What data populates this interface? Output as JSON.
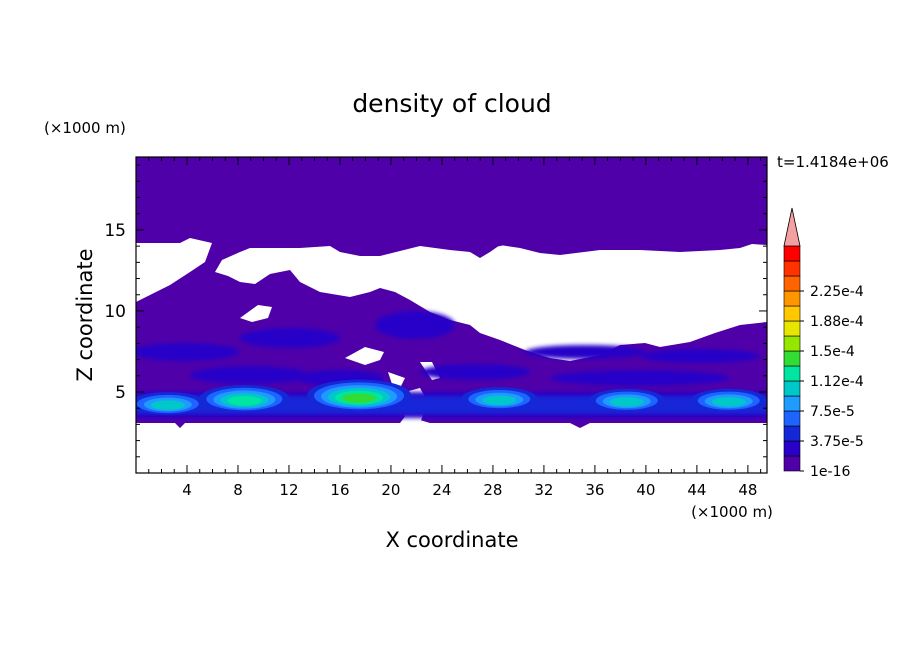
{
  "chart_data": {
    "type": "heatmap",
    "title": "density of cloud",
    "xlabel": "X coordinate",
    "ylabel": "Z coordinate",
    "x_unit": "(×1000 m)",
    "y_unit": "(×1000 m)",
    "time_label": "t=1.4184e+06",
    "xlim": [
      0,
      49.5
    ],
    "ylim": [
      0,
      19.5
    ],
    "x_ticks": [
      4,
      8,
      12,
      16,
      20,
      24,
      28,
      32,
      36,
      40,
      44,
      48
    ],
    "y_ticks": [
      5,
      10,
      15
    ],
    "colorbar": {
      "tick_labels": [
        "1e-16",
        "3.75e-5",
        "7.5e-5",
        "1.12e-4",
        "1.5e-4",
        "1.88e-4",
        "2.25e-4"
      ],
      "colors": [
        "#5000a8",
        "#2800c8",
        "#1428d8",
        "#1e64ff",
        "#1e9bff",
        "#00c8c8",
        "#00e6a0",
        "#32dc32",
        "#96e600",
        "#e6e600",
        "#ffc800",
        "#ff9600",
        "#ff6400",
        "#ff3200",
        "#ff0000",
        "#f4a0a0"
      ]
    },
    "cloud_layer": {
      "base_z": 3.5,
      "top_z_min": 10.0,
      "top_z_max": 14.5,
      "high_cloud_band_z": [
        15.5,
        17.0
      ]
    },
    "cores": [
      {
        "x": 2.5,
        "z": 4.3,
        "level": 5
      },
      {
        "x": 8.5,
        "z": 4.6,
        "level": 6
      },
      {
        "x": 17.5,
        "z": 4.8,
        "level": 7
      },
      {
        "x": 28.5,
        "z": 4.6,
        "level": 5
      },
      {
        "x": 38.5,
        "z": 4.5,
        "level": 5
      },
      {
        "x": 46.5,
        "z": 4.5,
        "level": 5
      }
    ]
  }
}
